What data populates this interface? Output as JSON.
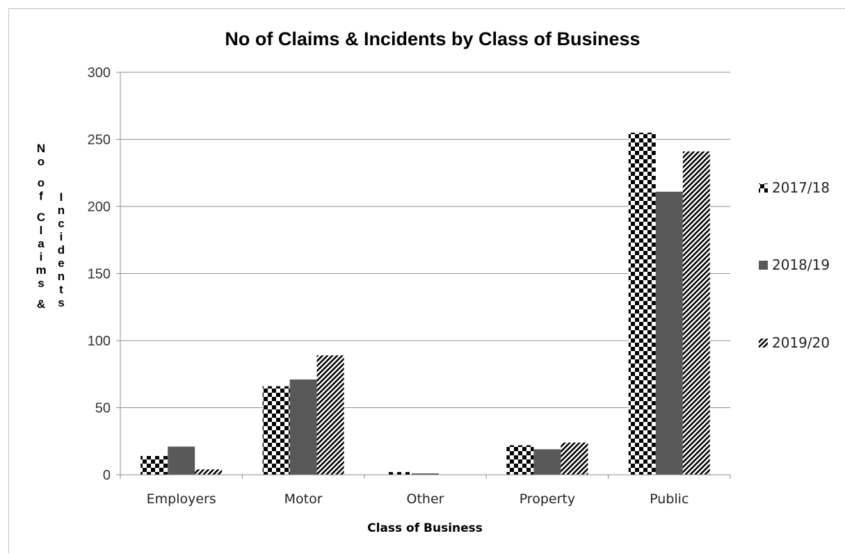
{
  "chart_data": {
    "type": "bar",
    "title": "No of Claims & Incidents by Class of Business",
    "xlabel": "Class of Business",
    "ylabel": "No of Claims & Incidents",
    "categories": [
      "Employers",
      "Motor",
      "Other",
      "Property",
      "Public"
    ],
    "series": [
      {
        "name": "2017/18",
        "values": [
          14,
          66,
          2,
          22,
          255
        ],
        "pattern": "checker",
        "color": "#000000"
      },
      {
        "name": "2018/19",
        "values": [
          21,
          71,
          1,
          19,
          211
        ],
        "pattern": "solid",
        "color": "#595959"
      },
      {
        "name": "2019/20",
        "values": [
          4,
          89,
          0,
          24,
          241
        ],
        "pattern": "diagonal",
        "color": "#000000"
      }
    ],
    "ylim": [
      0,
      300
    ],
    "yticks": [
      0,
      50,
      100,
      150,
      200,
      250,
      300
    ],
    "grid": true,
    "legend_position": "right"
  }
}
